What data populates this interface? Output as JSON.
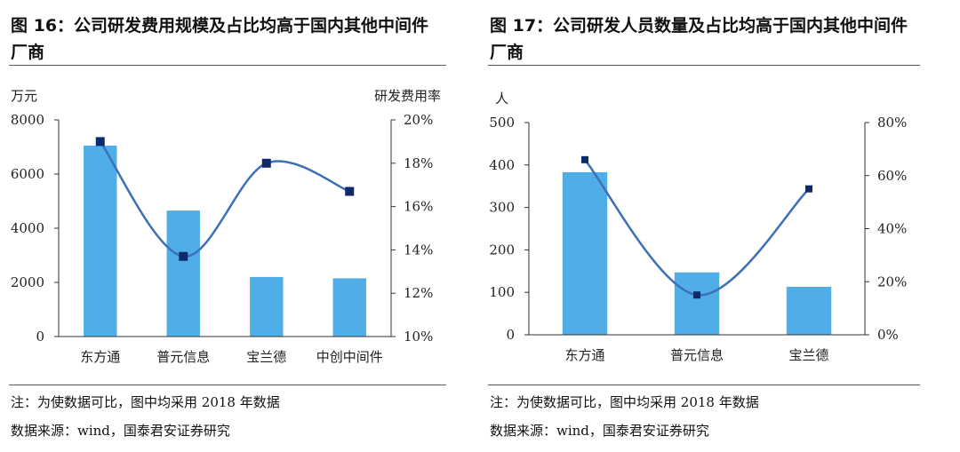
{
  "figures": [
    {
      "title": "图 16：公司研发费用规模及占比均高于国内其他中间件厂商",
      "note": "注：为使数据可比，图中均采用 2018 年数据",
      "source": "数据来源：wind，国泰君安证券研究"
    },
    {
      "title": "图 17：公司研发人员数量及占比均高于国内其他中间件厂商",
      "note": "注：为使数据可比，图中均采用 2018 年数据",
      "source": "数据来源：wind，国泰君安证券研究"
    }
  ],
  "colors": {
    "bar": "#4faee8",
    "line": "#3e6fb8",
    "marker": "#0d2b6b",
    "axis": "#333333"
  },
  "chart_data": [
    {
      "type": "bar",
      "categories": [
        "东方通",
        "普元信息",
        "宝兰德",
        "中创中间件"
      ],
      "series": [
        {
          "values": [
            7050,
            4650,
            2200,
            2150
          ]
        },
        {
          "values": [
            19.0,
            13.7,
            18.0,
            16.7
          ]
        }
      ],
      "ylabel_left": "万元",
      "ylabel_right": "研发费用率",
      "ylim_left": [
        0,
        8000
      ],
      "yticks_left": [
        "0",
        "2000",
        "4000",
        "6000",
        "8000"
      ],
      "ylim_right": [
        10,
        20
      ],
      "yticks_right": [
        "10%",
        "12%",
        "14%",
        "16%",
        "18%",
        "20%"
      ],
      "grid": false,
      "legend": "none"
    },
    {
      "type": "bar",
      "categories": [
        "东方通",
        "普元信息",
        "宝兰德"
      ],
      "series": [
        {
          "values": [
            383,
            147,
            113
          ]
        },
        {
          "values": [
            66,
            15,
            55
          ]
        }
      ],
      "ylabel_left": "人",
      "ylabel_right": "",
      "ylim_left": [
        0,
        500
      ],
      "yticks_left": [
        "0",
        "100",
        "200",
        "300",
        "400",
        "500"
      ],
      "ylim_right": [
        0,
        80
      ],
      "yticks_right": [
        "0%",
        "20%",
        "40%",
        "60%",
        "80%"
      ],
      "grid": false,
      "legend": "none"
    }
  ]
}
